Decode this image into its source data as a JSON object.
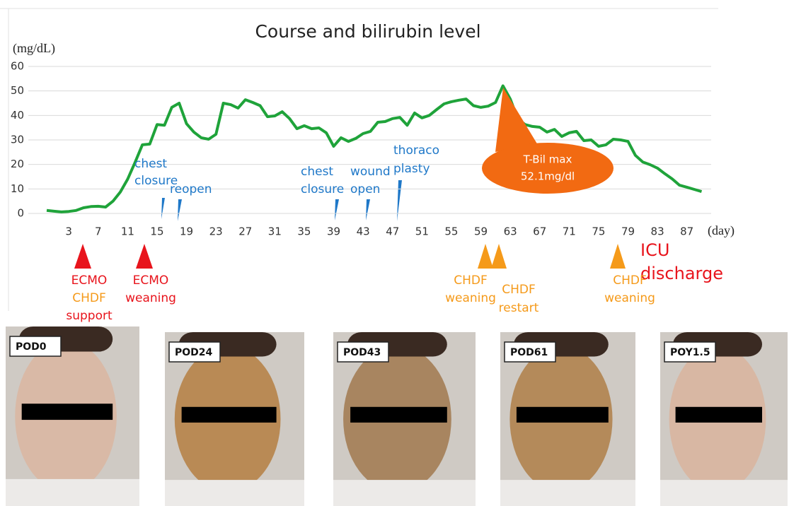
{
  "chart_data": {
    "type": "line",
    "title": "Course and bilirubin level",
    "y_label": "(mg/dL)",
    "x_label": "(day)",
    "x": [
      0,
      1,
      2,
      3,
      4,
      5,
      6,
      7,
      8,
      9,
      10,
      11,
      12,
      13,
      14,
      15,
      16,
      17,
      18,
      19,
      20,
      21,
      22,
      23,
      24,
      25,
      26,
      27,
      28,
      29,
      30,
      31,
      32,
      33,
      34,
      35,
      36,
      37,
      38,
      39,
      40,
      41,
      42,
      43,
      44,
      45,
      46,
      47,
      48,
      49,
      50,
      51,
      52,
      53,
      54,
      55,
      56,
      57,
      58,
      59,
      60,
      61,
      62,
      63,
      64,
      65,
      66,
      67,
      68,
      69,
      70,
      71,
      72,
      73,
      74,
      75,
      76,
      77,
      78,
      79,
      80,
      81,
      82,
      83,
      84,
      85,
      86,
      87,
      88,
      89
    ],
    "values": [
      1.2,
      0.9,
      0.6,
      0.8,
      1.2,
      2.3,
      2.8,
      2.9,
      2.6,
      5,
      8.7,
      14,
      20.8,
      28,
      28.3,
      36.3,
      36,
      43.3,
      45,
      36.6,
      33.2,
      30.9,
      30.3,
      32.3,
      45,
      44.4,
      43,
      46.4,
      45.3,
      44,
      39.5,
      39.8,
      41.5,
      38.7,
      34.6,
      35.8,
      34.6,
      34.9,
      32.9,
      27.4,
      30.9,
      29.4,
      30.6,
      32.6,
      33.5,
      37.2,
      37.5,
      38.7,
      39.2,
      36,
      41,
      39,
      40,
      42.4,
      44.7,
      45.6,
      46.2,
      46.7,
      44,
      43.3,
      43.8,
      45.3,
      52.1,
      46.7,
      38.7,
      36.3,
      35.5,
      35.2,
      33.2,
      34.3,
      31.4,
      32.9,
      33.5,
      29.7,
      30,
      27.4,
      28,
      30.3,
      30,
      29.4,
      23.7,
      21,
      19.9,
      18.5,
      16.2,
      14.1,
      11.5,
      10.7,
      9.8,
      8.9
    ],
    "color": "#1fa33a",
    "xlim": [
      -2.5,
      90.3
    ],
    "ylim": [
      0,
      60
    ],
    "xticks": [
      3,
      7,
      11,
      15,
      19,
      23,
      27,
      31,
      35,
      39,
      43,
      47,
      51,
      55,
      59,
      63,
      67,
      71,
      75,
      79,
      83,
      87
    ],
    "yticks": [
      0,
      10,
      20,
      30,
      40,
      50,
      60
    ],
    "grid": true,
    "annotations": [
      {
        "lines": [
          "chest",
          "closure"
        ],
        "color": "#1f78c8"
      },
      {
        "lines": [
          "reopen"
        ],
        "color": "#1f78c8"
      },
      {
        "lines": [
          "chest",
          "closure"
        ],
        "color": "#1f78c8"
      },
      {
        "lines": [
          "wound",
          "open"
        ],
        "color": "#1f78c8"
      },
      {
        "lines": [
          "thoraco",
          "plasty"
        ],
        "color": "#1f78c8"
      },
      {
        "lines": [
          "T-Bil max",
          "52.1mg/dl"
        ],
        "color": "#ffffff"
      },
      {
        "lines": [
          "ECMO",
          "CHDF",
          "support"
        ],
        "color": "#e8141c",
        "colors": [
          "#e8141c",
          "#f59a1a",
          "#e8141c"
        ]
      },
      {
        "lines": [
          "ECMO",
          "weaning"
        ],
        "color": "#e8141c"
      },
      {
        "lines": [
          "CHDF",
          "weaning"
        ],
        "color": "#f59a1a"
      },
      {
        "lines": [
          "CHDF",
          "restart"
        ],
        "color": "#f59a1a"
      },
      {
        "lines": [
          "ICU",
          "discharge"
        ],
        "color": "#e8141c"
      },
      {
        "lines": [
          "CHDF",
          "weaning"
        ],
        "color": "#f59a1a"
      }
    ]
  },
  "photos": [
    {
      "label": "POD0"
    },
    {
      "label": "POD24"
    },
    {
      "label": "POD43"
    },
    {
      "label": "POD61"
    },
    {
      "label": "POY1.5"
    }
  ]
}
